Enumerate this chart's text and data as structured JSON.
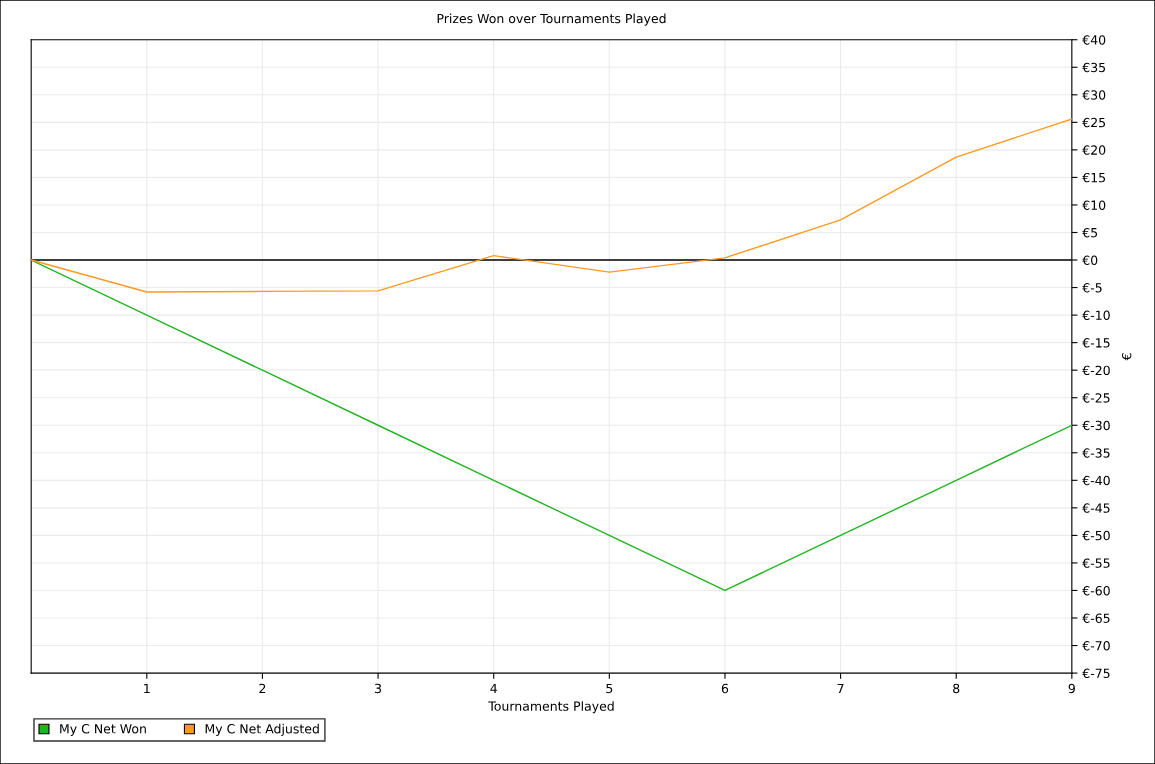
{
  "chart_data": {
    "type": "line",
    "title": "Prizes Won over Tournaments Played",
    "xlabel": "Tournaments Played",
    "ylabel": "€",
    "x": [
      0,
      1,
      2,
      3,
      4,
      5,
      6,
      7,
      8,
      9
    ],
    "series": [
      {
        "name": "My C Net Won",
        "color": "#22b522",
        "values": [
          0,
          -10,
          -20,
          -30,
          -40,
          -50,
          -60,
          -50,
          -40,
          -30
        ]
      },
      {
        "name": "My C Net Adjusted",
        "color": "#ff9922",
        "values": [
          0,
          -5.8,
          -5.7,
          -5.6,
          0.8,
          -2.2,
          0.4,
          7.3,
          18.7,
          25.6
        ]
      }
    ],
    "xlim": [
      0,
      9
    ],
    "xticks": [
      1,
      2,
      3,
      4,
      5,
      6,
      7,
      8,
      9
    ],
    "ylim": [
      -75,
      40
    ],
    "yticks": [
      {
        "value": 40,
        "label": "€40"
      },
      {
        "value": 35,
        "label": "€35"
      },
      {
        "value": 30,
        "label": "€30"
      },
      {
        "value": 25,
        "label": "€25"
      },
      {
        "value": 20,
        "label": "€20"
      },
      {
        "value": 15,
        "label": "€15"
      },
      {
        "value": 10,
        "label": "€10"
      },
      {
        "value": 5,
        "label": "€5"
      },
      {
        "value": 0,
        "label": "€0"
      },
      {
        "value": -5,
        "label": "€-5"
      },
      {
        "value": -10,
        "label": "€-10"
      },
      {
        "value": -15,
        "label": "€-15"
      },
      {
        "value": -20,
        "label": "€-20"
      },
      {
        "value": -25,
        "label": "€-25"
      },
      {
        "value": -30,
        "label": "€-30"
      },
      {
        "value": -35,
        "label": "€-35"
      },
      {
        "value": -40,
        "label": "€-40"
      },
      {
        "value": -45,
        "label": "€-45"
      },
      {
        "value": -50,
        "label": "€-50"
      },
      {
        "value": -55,
        "label": "€-55"
      },
      {
        "value": -60,
        "label": "€-60"
      },
      {
        "value": -65,
        "label": "€-65"
      },
      {
        "value": -70,
        "label": "€-70"
      },
      {
        "value": -75,
        "label": "€-75"
      }
    ],
    "ref_lines": [
      {
        "axis": "y",
        "value": 0,
        "color": "#000000"
      }
    ],
    "grid": true,
    "legend": "bottom left",
    "marker": "none",
    "line_style": "solid"
  }
}
